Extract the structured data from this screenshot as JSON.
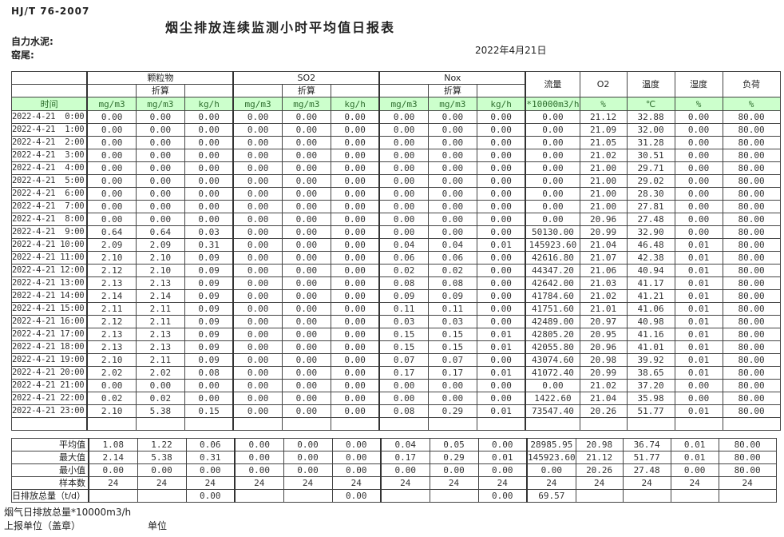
{
  "page": {
    "standard": "HJ/T 76-2007",
    "title": "烟尘排放连续监测小时平均值日报表",
    "company": "自力水泥:",
    "location": "窑尾:",
    "date": "2022年4月21日"
  },
  "table": {
    "time_label": "时间",
    "groups": [
      "颗粒物",
      "SO2",
      "Nox"
    ],
    "subheader": "折算",
    "flow_label": "流量",
    "o2_label": "O2",
    "temp_label": "温度",
    "humidity_label": "湿度",
    "load_label": "负荷",
    "units": [
      "mg/m3",
      "mg/m3",
      "kg/h",
      "mg/m3",
      "mg/m3",
      "kg/h",
      "mg/m3",
      "mg/m3",
      "kg/h",
      "*10000m3/h",
      "%",
      "℃",
      "%",
      "%"
    ],
    "accent_green": "#ccffcc",
    "rows": [
      {
        "time": "2022-4-21  0:00",
        "v": [
          "0.00",
          "0.00",
          "0.00",
          "0.00",
          "0.00",
          "0.00",
          "0.00",
          "0.00",
          "0.00",
          "0.00",
          "21.12",
          "32.88",
          "0.00",
          "80.00"
        ]
      },
      {
        "time": "2022-4-21  1:00",
        "v": [
          "0.00",
          "0.00",
          "0.00",
          "0.00",
          "0.00",
          "0.00",
          "0.00",
          "0.00",
          "0.00",
          "0.00",
          "21.09",
          "32.00",
          "0.00",
          "80.00"
        ]
      },
      {
        "time": "2022-4-21  2:00",
        "v": [
          "0.00",
          "0.00",
          "0.00",
          "0.00",
          "0.00",
          "0.00",
          "0.00",
          "0.00",
          "0.00",
          "0.00",
          "21.05",
          "31.28",
          "0.00",
          "80.00"
        ]
      },
      {
        "time": "2022-4-21  3:00",
        "v": [
          "0.00",
          "0.00",
          "0.00",
          "0.00",
          "0.00",
          "0.00",
          "0.00",
          "0.00",
          "0.00",
          "0.00",
          "21.02",
          "30.51",
          "0.00",
          "80.00"
        ]
      },
      {
        "time": "2022-4-21  4:00",
        "v": [
          "0.00",
          "0.00",
          "0.00",
          "0.00",
          "0.00",
          "0.00",
          "0.00",
          "0.00",
          "0.00",
          "0.00",
          "21.00",
          "29.71",
          "0.00",
          "80.00"
        ]
      },
      {
        "time": "2022-4-21  5:00",
        "v": [
          "0.00",
          "0.00",
          "0.00",
          "0.00",
          "0.00",
          "0.00",
          "0.00",
          "0.00",
          "0.00",
          "0.00",
          "21.00",
          "29.02",
          "0.00",
          "80.00"
        ]
      },
      {
        "time": "2022-4-21  6:00",
        "v": [
          "0.00",
          "0.00",
          "0.00",
          "0.00",
          "0.00",
          "0.00",
          "0.00",
          "0.00",
          "0.00",
          "0.00",
          "21.00",
          "28.30",
          "0.00",
          "80.00"
        ]
      },
      {
        "time": "2022-4-21  7:00",
        "v": [
          "0.00",
          "0.00",
          "0.00",
          "0.00",
          "0.00",
          "0.00",
          "0.00",
          "0.00",
          "0.00",
          "0.00",
          "21.00",
          "27.81",
          "0.00",
          "80.00"
        ]
      },
      {
        "time": "2022-4-21  8:00",
        "v": [
          "0.00",
          "0.00",
          "0.00",
          "0.00",
          "0.00",
          "0.00",
          "0.00",
          "0.00",
          "0.00",
          "0.00",
          "20.96",
          "27.48",
          "0.00",
          "80.00"
        ]
      },
      {
        "time": "2022-4-21  9:00",
        "v": [
          "0.64",
          "0.64",
          "0.03",
          "0.00",
          "0.00",
          "0.00",
          "0.00",
          "0.00",
          "0.00",
          "50130.00",
          "20.99",
          "32.90",
          "0.00",
          "80.00"
        ]
      },
      {
        "time": "2022-4-21 10:00",
        "v": [
          "2.09",
          "2.09",
          "0.31",
          "0.00",
          "0.00",
          "0.00",
          "0.04",
          "0.04",
          "0.01",
          "145923.60",
          "21.04",
          "46.48",
          "0.01",
          "80.00"
        ]
      },
      {
        "time": "2022-4-21 11:00",
        "v": [
          "2.10",
          "2.10",
          "0.09",
          "0.00",
          "0.00",
          "0.00",
          "0.06",
          "0.06",
          "0.00",
          "42616.80",
          "21.07",
          "42.38",
          "0.01",
          "80.00"
        ]
      },
      {
        "time": "2022-4-21 12:00",
        "v": [
          "2.12",
          "2.10",
          "0.09",
          "0.00",
          "0.00",
          "0.00",
          "0.02",
          "0.02",
          "0.00",
          "44347.20",
          "21.06",
          "40.94",
          "0.01",
          "80.00"
        ]
      },
      {
        "time": "2022-4-21 13:00",
        "v": [
          "2.13",
          "2.13",
          "0.09",
          "0.00",
          "0.00",
          "0.00",
          "0.08",
          "0.08",
          "0.00",
          "42642.00",
          "21.03",
          "41.17",
          "0.01",
          "80.00"
        ]
      },
      {
        "time": "2022-4-21 14:00",
        "v": [
          "2.14",
          "2.14",
          "0.09",
          "0.00",
          "0.00",
          "0.00",
          "0.09",
          "0.09",
          "0.00",
          "41784.60",
          "21.02",
          "41.21",
          "0.01",
          "80.00"
        ]
      },
      {
        "time": "2022-4-21 15:00",
        "v": [
          "2.11",
          "2.11",
          "0.09",
          "0.00",
          "0.00",
          "0.00",
          "0.11",
          "0.11",
          "0.00",
          "41751.60",
          "21.01",
          "41.06",
          "0.01",
          "80.00"
        ]
      },
      {
        "time": "2022-4-21 16:00",
        "v": [
          "2.12",
          "2.11",
          "0.09",
          "0.00",
          "0.00",
          "0.00",
          "0.03",
          "0.03",
          "0.00",
          "42489.00",
          "20.97",
          "40.98",
          "0.01",
          "80.00"
        ]
      },
      {
        "time": "2022-4-21 17:00",
        "v": [
          "2.13",
          "2.13",
          "0.09",
          "0.00",
          "0.00",
          "0.00",
          "0.15",
          "0.15",
          "0.01",
          "42805.20",
          "20.95",
          "41.16",
          "0.01",
          "80.00"
        ]
      },
      {
        "time": "2022-4-21 18:00",
        "v": [
          "2.13",
          "2.13",
          "0.09",
          "0.00",
          "0.00",
          "0.00",
          "0.15",
          "0.15",
          "0.01",
          "42055.80",
          "20.96",
          "41.01",
          "0.01",
          "80.00"
        ]
      },
      {
        "time": "2022-4-21 19:00",
        "v": [
          "2.10",
          "2.11",
          "0.09",
          "0.00",
          "0.00",
          "0.00",
          "0.07",
          "0.07",
          "0.00",
          "43074.60",
          "20.98",
          "39.92",
          "0.01",
          "80.00"
        ]
      },
      {
        "time": "2022-4-21 20:00",
        "v": [
          "2.02",
          "2.02",
          "0.08",
          "0.00",
          "0.00",
          "0.00",
          "0.17",
          "0.17",
          "0.01",
          "41072.40",
          "20.99",
          "38.65",
          "0.01",
          "80.00"
        ]
      },
      {
        "time": "2022-4-21 21:00",
        "v": [
          "0.00",
          "0.00",
          "0.00",
          "0.00",
          "0.00",
          "0.00",
          "0.00",
          "0.00",
          "0.00",
          "0.00",
          "21.02",
          "37.20",
          "0.00",
          "80.00"
        ]
      },
      {
        "time": "2022-4-21 22:00",
        "v": [
          "0.02",
          "0.02",
          "0.00",
          "0.00",
          "0.00",
          "0.00",
          "0.00",
          "0.00",
          "0.00",
          "1422.60",
          "21.04",
          "35.98",
          "0.00",
          "80.00"
        ]
      },
      {
        "time": "2022-4-21 23:00",
        "v": [
          "2.10",
          "5.38",
          "0.15",
          "0.00",
          "0.00",
          "0.00",
          "0.08",
          "0.29",
          "0.01",
          "73547.40",
          "20.26",
          "51.77",
          "0.01",
          "80.00"
        ]
      }
    ],
    "summary": [
      {
        "label": "平均值",
        "v": [
          "1.08",
          "1.22",
          "0.06",
          "0.00",
          "0.00",
          "0.00",
          "0.04",
          "0.05",
          "0.00",
          "28985.95",
          "20.98",
          "36.74",
          "0.01",
          "80.00"
        ]
      },
      {
        "label": "最大值",
        "v": [
          "2.14",
          "5.38",
          "0.31",
          "0.00",
          "0.00",
          "0.00",
          "0.17",
          "0.29",
          "0.01",
          "145923.60",
          "21.12",
          "51.77",
          "0.01",
          "80.00"
        ]
      },
      {
        "label": "最小值",
        "v": [
          "0.00",
          "0.00",
          "0.00",
          "0.00",
          "0.00",
          "0.00",
          "0.00",
          "0.00",
          "0.00",
          "0.00",
          "20.26",
          "27.48",
          "0.00",
          "80.00"
        ]
      },
      {
        "label": "样本数",
        "v": [
          "24",
          "24",
          "24",
          "24",
          "24",
          "24",
          "24",
          "24",
          "24",
          "24",
          "24",
          "24",
          "24",
          "24"
        ]
      },
      {
        "label": "日排放总量（t/d）",
        "v": [
          "",
          "",
          "0.00",
          "",
          "",
          "0.00",
          "",
          "",
          "0.00",
          "69.57",
          "",
          "",
          "",
          ""
        ]
      }
    ]
  },
  "footer": {
    "flow_total": "烟气日排放总量*10000m3/h",
    "report_unit": "上报单位（盖章）",
    "unit": "单位"
  }
}
